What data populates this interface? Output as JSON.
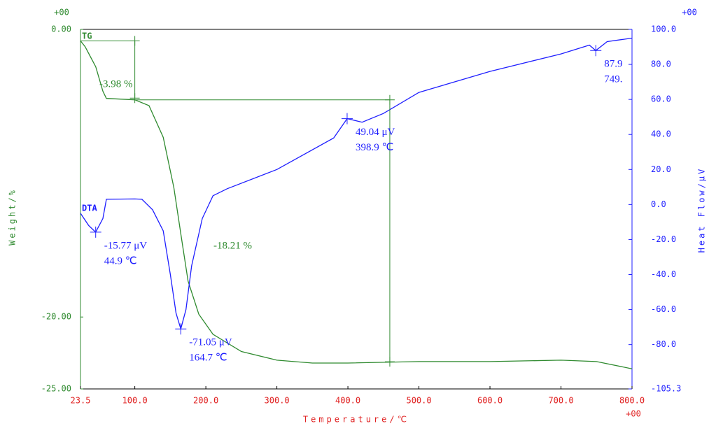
{
  "chart_data": {
    "type": "line",
    "x_label": "Temperature/℃",
    "y_label": "Weight/%",
    "y2_label": "Heat Flow/μV",
    "x_exponent": "+00",
    "y_exponent": "+00",
    "y2_exponent": "+00",
    "xlim": [
      23.5,
      800
    ],
    "xticks": [
      23.5,
      {
        "value": 100,
        "label": "100.0"
      },
      {
        "value": 200,
        "label": "200.0"
      },
      {
        "value": 300,
        "label": "300.0"
      },
      {
        "value": 400,
        "label": "400.0"
      },
      {
        "value": 500,
        "label": "500.0"
      },
      {
        "value": 600,
        "label": "600.0"
      },
      {
        "value": 700,
        "label": "700.0"
      },
      {
        "value": 800,
        "label": "800.0"
      }
    ],
    "ylim": [
      -25,
      0
    ],
    "yticks": [
      {
        "value": 0,
        "label": "0.00"
      },
      {
        "value": -20,
        "label": "-20.00"
      },
      {
        "value": -25,
        "label": "-25.00"
      }
    ],
    "y2lim": [
      -105.3,
      100
    ],
    "y2ticks": [
      {
        "value": 100,
        "label": "100.0"
      },
      {
        "value": 80,
        "label": "80.0"
      },
      {
        "value": 60,
        "label": "60.0"
      },
      {
        "value": 40,
        "label": "40.0"
      },
      {
        "value": 20,
        "label": "20.0"
      },
      {
        "value": 0,
        "label": "0.0"
      },
      {
        "value": -20,
        "label": "-20.0"
      },
      {
        "value": -40,
        "label": "-40.0"
      },
      {
        "value": -60,
        "label": "-60.0"
      },
      {
        "value": -80,
        "label": "-80.0"
      },
      {
        "value": -105.3,
        "label": "-105.3"
      }
    ],
    "series": [
      {
        "name": "TG",
        "color": "#2f8a2f",
        "x": [
          23.5,
          30,
          45,
          55,
          60,
          100,
          120,
          140,
          155,
          165,
          175,
          190,
          210,
          250,
          300,
          350,
          400,
          500,
          600,
          700,
          750,
          800
        ],
        "values": [
          -0.8,
          -1.2,
          -2.6,
          -4.3,
          -4.8,
          -4.9,
          -5.3,
          -7.5,
          -11,
          -14.3,
          -17.5,
          -19.8,
          -21.2,
          -22.4,
          -23.0,
          -23.2,
          -23.2,
          -23.1,
          -23.1,
          -23.0,
          -23.1,
          -23.6
        ]
      },
      {
        "name": "DTA",
        "color": "#1f1fff",
        "axis": "y2",
        "x": [
          23.5,
          35,
          44.9,
          55,
          60,
          100,
          110,
          125,
          140,
          150,
          158,
          164.7,
          172,
          180,
          195,
          210,
          230,
          300,
          380,
          398.9,
          420,
          450,
          500,
          600,
          700,
          740,
          749,
          765,
          800
        ],
        "values": [
          -5,
          -12,
          -15.77,
          -8,
          3,
          3.2,
          3,
          -3,
          -15,
          -40,
          -62,
          -71.05,
          -60,
          -35,
          -8,
          5,
          9,
          20,
          38,
          49.04,
          47,
          52,
          64,
          76,
          86,
          91,
          87.9,
          93,
          95
        ]
      }
    ],
    "steps": [
      {
        "x": [
          23.5,
          100
        ],
        "value": -3.98,
        "label": "-3.98 %"
      },
      {
        "x": [
          100,
          459
        ],
        "value": -18.21,
        "label": "-18.21 %"
      }
    ],
    "peaks": [
      {
        "x": 44.9,
        "y": -15.77,
        "y_label": "-15.77 μV",
        "x_label": "44.9 ℃"
      },
      {
        "x": 164.7,
        "y": -71.05,
        "y_label": "-71.05 μV",
        "x_label": "164.7 ℃"
      },
      {
        "x": 398.9,
        "y": 49.04,
        "y_label": "49.04 μV",
        "x_label": "398.9 ℃"
      },
      {
        "x": 749,
        "y": 87.9,
        "y_label": "87.9",
        "x_label": "749."
      }
    ]
  }
}
